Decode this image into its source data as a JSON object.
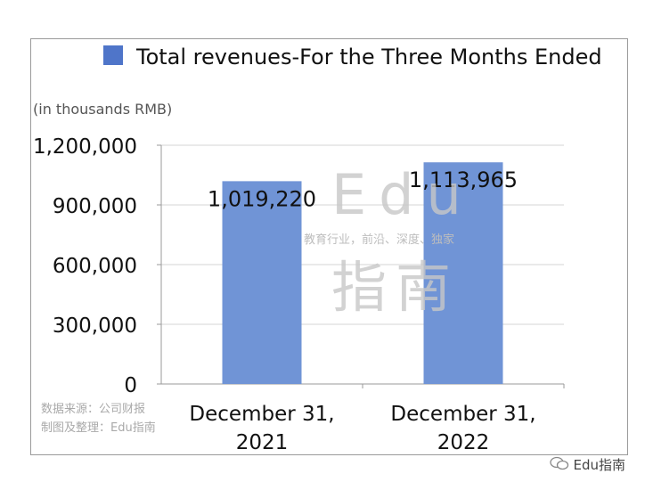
{
  "chart_data": {
    "type": "bar",
    "legend": "Total revenues-For the Three Months Ended",
    "unit_note": "(in thousands RMB)",
    "categories": [
      "December 31,\n2021",
      "December 31,\n2022"
    ],
    "values": [
      1019220,
      1113965
    ],
    "data_labels": [
      "1,019,220",
      "1,113,965"
    ],
    "y_ticks": [
      "0",
      "300,000",
      "600,000",
      "900,000",
      "1,200,000"
    ],
    "ylim": [
      0,
      1200000
    ],
    "grid": true,
    "legend_position": "top",
    "bar_color": "#7094d6",
    "legend_color": "#4f75c9"
  },
  "watermark": {
    "line1": "Edu",
    "line2": "教育行业，前沿、深度、独家",
    "line3": "指南"
  },
  "source": {
    "line1": "数据来源：公司财报",
    "line2": "制图及整理：Edu指南"
  },
  "corner_label": "Edu指南"
}
